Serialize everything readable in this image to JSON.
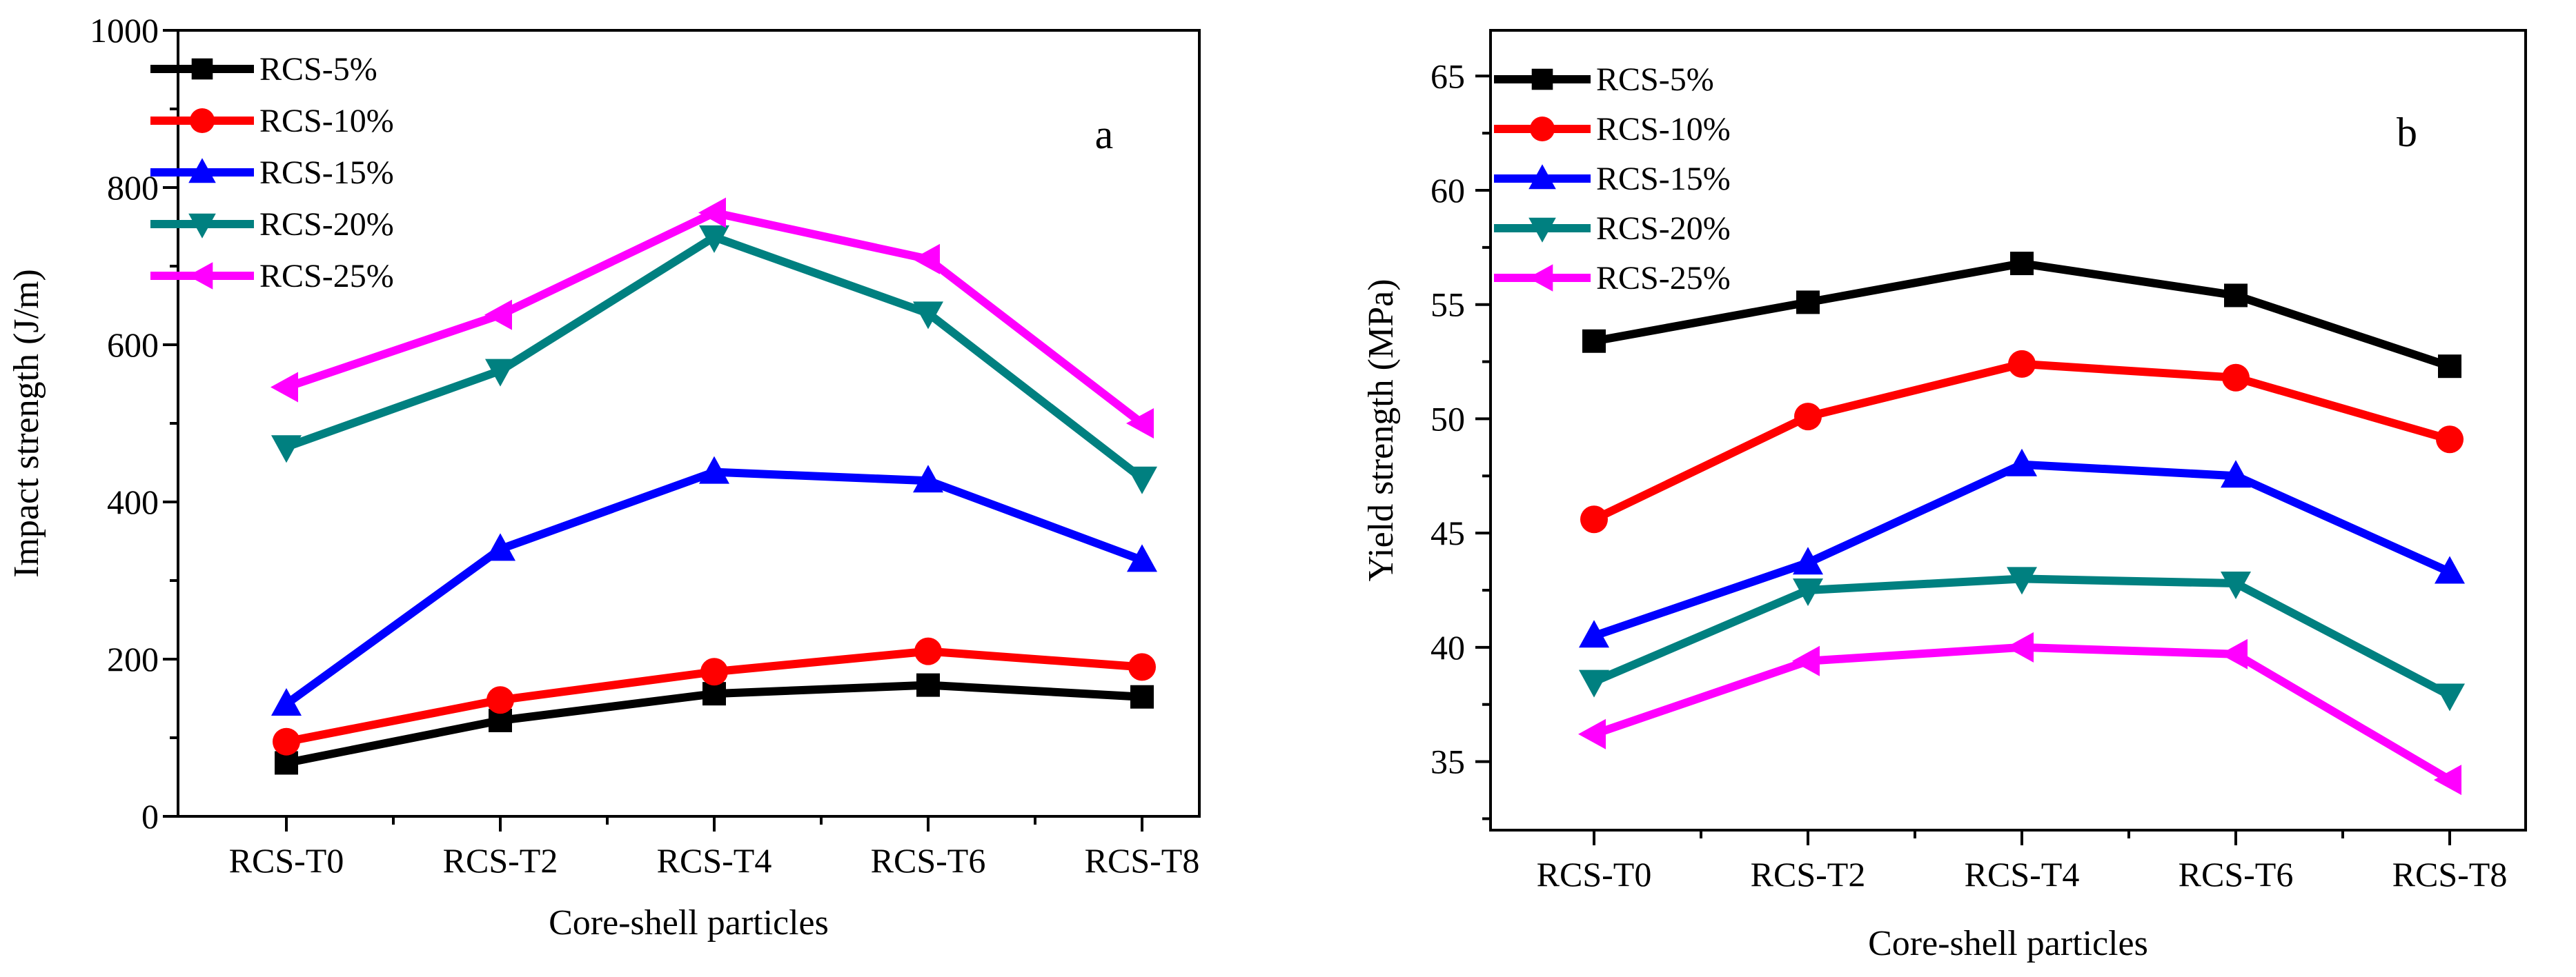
{
  "chart_data": [
    {
      "type": "line",
      "panel_label": "a",
      "xlabel": "Core-shell particles",
      "ylabel": "Impact strength (J/m)",
      "categories": [
        "RCS-T0",
        "RCS-T2",
        "RCS-T4",
        "RCS-T6",
        "RCS-T8"
      ],
      "ylim": [
        0,
        1000
      ],
      "yticks": [
        0,
        200,
        400,
        600,
        800,
        1000
      ],
      "grid": false,
      "legend_position": "top-left",
      "series": [
        {
          "name": "RCS-5%",
          "color": "#000000",
          "marker": "square",
          "values": [
            68,
            122,
            156,
            167,
            152
          ]
        },
        {
          "name": "RCS-10%",
          "color": "#ff0000",
          "marker": "circle",
          "values": [
            95,
            148,
            184,
            210,
            190
          ]
        },
        {
          "name": "RCS-15%",
          "color": "#0000ff",
          "marker": "triangle-up",
          "values": [
            143,
            340,
            438,
            427,
            326
          ]
        },
        {
          "name": "RCS-20%",
          "color": "#008080",
          "marker": "triangle-down",
          "values": [
            470,
            567,
            737,
            640,
            430
          ]
        },
        {
          "name": "RCS-25%",
          "color": "#ff00ff",
          "marker": "triangle-left",
          "values": [
            546,
            638,
            768,
            709,
            500
          ]
        }
      ]
    },
    {
      "type": "line",
      "panel_label": "b",
      "xlabel": "Core-shell particles",
      "ylabel": "Yield strength (MPa)",
      "categories": [
        "RCS-T0",
        "RCS-T2",
        "RCS-T4",
        "RCS-T6",
        "RCS-T8"
      ],
      "ylim": [
        32,
        67
      ],
      "yticks": [
        35,
        40,
        45,
        50,
        55,
        60,
        65
      ],
      "grid": false,
      "legend_position": "top-left",
      "series": [
        {
          "name": "RCS-5%",
          "color": "#000000",
          "marker": "square",
          "values": [
            53.4,
            55.1,
            56.8,
            55.4,
            52.3
          ]
        },
        {
          "name": "RCS-10%",
          "color": "#ff0000",
          "marker": "circle",
          "values": [
            45.6,
            50.1,
            52.4,
            51.8,
            49.1
          ]
        },
        {
          "name": "RCS-15%",
          "color": "#0000ff",
          "marker": "triangle-up",
          "values": [
            40.5,
            43.7,
            48.0,
            47.5,
            43.3
          ]
        },
        {
          "name": "RCS-20%",
          "color": "#008080",
          "marker": "triangle-down",
          "values": [
            38.5,
            42.5,
            43.0,
            42.8,
            37.9
          ]
        },
        {
          "name": "RCS-25%",
          "color": "#ff00ff",
          "marker": "triangle-left",
          "values": [
            36.2,
            39.4,
            40.0,
            39.7,
            34.2
          ]
        }
      ]
    }
  ]
}
